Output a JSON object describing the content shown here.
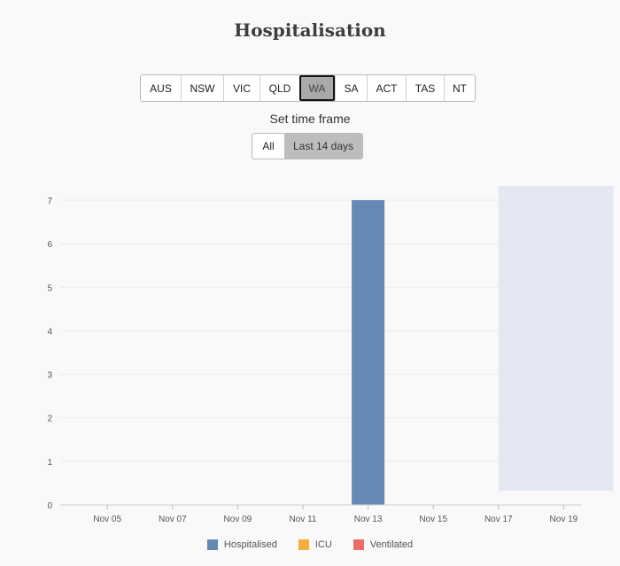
{
  "page": {
    "title": "Hospitalisation"
  },
  "regions": {
    "items": [
      "AUS",
      "NSW",
      "VIC",
      "QLD",
      "WA",
      "SA",
      "ACT",
      "TAS",
      "NT"
    ],
    "selected": "WA"
  },
  "timeframe": {
    "label": "Set time frame",
    "options": [
      "All",
      "Last 14 days"
    ],
    "selected": "Last 14 days"
  },
  "chart_data": {
    "type": "bar",
    "title": "Hospitalisation",
    "xlabel": "",
    "ylabel": "",
    "x_ticks": [
      "Nov 05",
      "Nov 07",
      "Nov 09",
      "Nov 11",
      "Nov 13",
      "Nov 15",
      "Nov 17",
      "Nov 19"
    ],
    "ylim": [
      0,
      7
    ],
    "y_ticks": [
      0,
      1,
      2,
      3,
      4,
      5,
      6,
      7
    ],
    "grid": true,
    "series": [
      {
        "name": "Hospitalised",
        "color": "#6588b4",
        "points": [
          {
            "x": "Nov 13",
            "y": 7
          }
        ]
      },
      {
        "name": "ICU",
        "color": "#f5ad3c",
        "points": []
      },
      {
        "name": "Ventilated",
        "color": "#ee6b67",
        "points": []
      }
    ],
    "shaded_region": {
      "x_start": "Nov 17",
      "x_end": "Nov 20",
      "color": "#e4e8f2"
    },
    "legend_position": "bottom"
  }
}
